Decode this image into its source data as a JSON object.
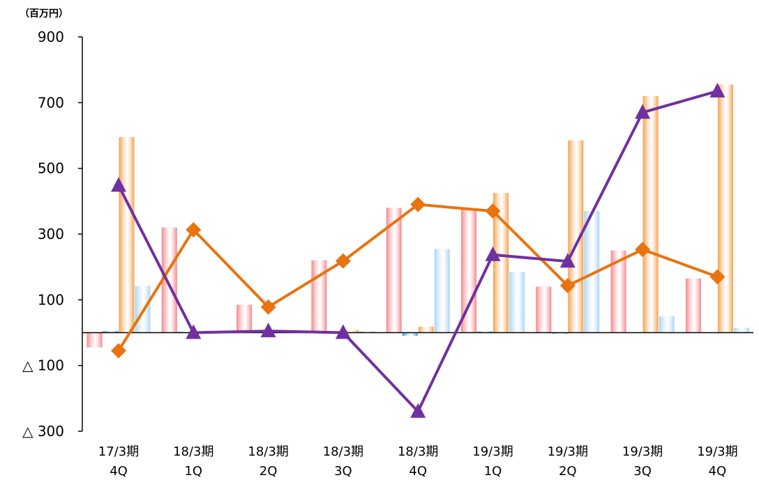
{
  "chart_data": {
    "type": "bar",
    "unit_label": "（百万円）",
    "ylim": [
      -300,
      900
    ],
    "y_ticks": [
      {
        "value": 900,
        "label": "900"
      },
      {
        "value": 700,
        "label": "700"
      },
      {
        "value": 500,
        "label": "500"
      },
      {
        "value": 300,
        "label": "300"
      },
      {
        "value": 100,
        "label": "100"
      },
      {
        "value": -100,
        "label": "△ 100"
      },
      {
        "value": -300,
        "label": "△ 300"
      }
    ],
    "categories": [
      [
        "17/3期",
        "4Q"
      ],
      [
        "18/3期",
        "1Q"
      ],
      [
        "18/3期",
        "2Q"
      ],
      [
        "18/3期",
        "3Q"
      ],
      [
        "18/3期",
        "4Q"
      ],
      [
        "19/3期",
        "1Q"
      ],
      [
        "19/3期",
        "2Q"
      ],
      [
        "19/3期",
        "3Q"
      ],
      [
        "19/3期",
        "4Q"
      ]
    ],
    "bar_series": [
      {
        "color": "#f4868a",
        "values": [
          -45,
          320,
          85,
          220,
          380,
          375,
          140,
          250,
          165
        ]
      },
      {
        "color": "#2aa8e6",
        "values": [
          5,
          3,
          2,
          2,
          -10,
          4,
          -2,
          0,
          0
        ]
      },
      {
        "color": "#f5a04a",
        "values": [
          595,
          0,
          0,
          8,
          18,
          425,
          585,
          720,
          755
        ]
      },
      {
        "color": "#a8d4f5",
        "values": [
          142,
          0,
          0,
          5,
          255,
          185,
          370,
          50,
          15
        ]
      }
    ],
    "line_series": [
      {
        "color": "#e8730f",
        "marker": "diamond",
        "values": [
          -55,
          313,
          78,
          218,
          390,
          370,
          143,
          253,
          170
        ]
      },
      {
        "color": "#7030a0",
        "marker": "triangle",
        "values": [
          448,
          0,
          5,
          0,
          -240,
          237,
          217,
          670,
          735
        ]
      }
    ]
  }
}
